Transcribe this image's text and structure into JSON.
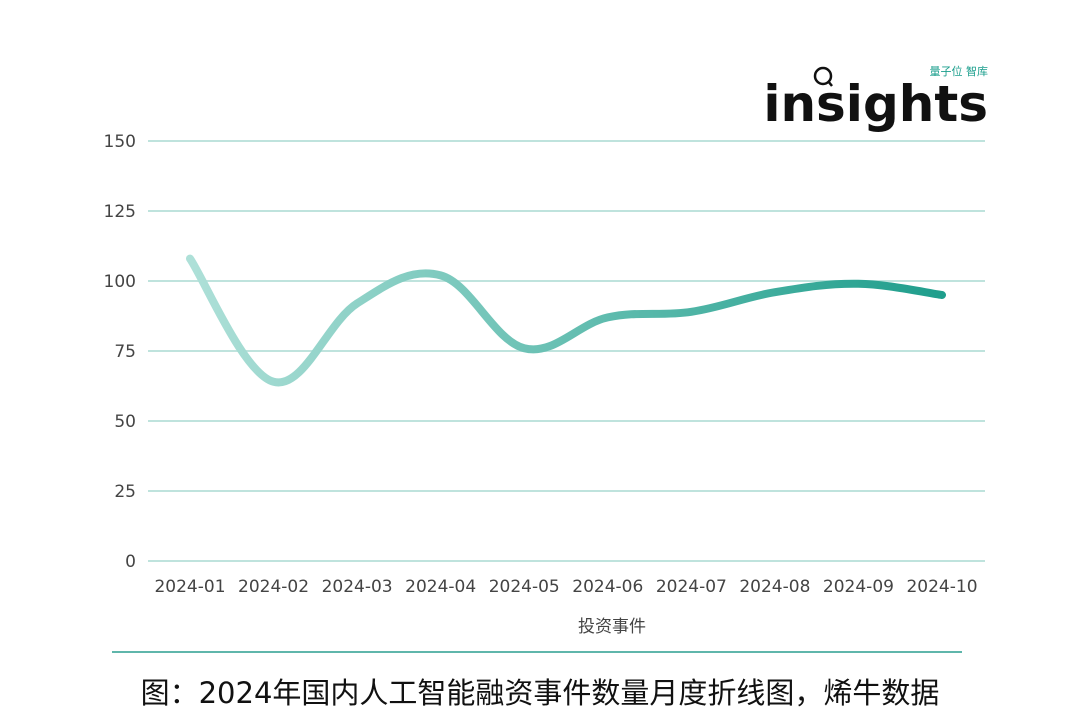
{
  "brand": {
    "small_text": "量子位 智库",
    "logo_text": "insights"
  },
  "caption": "图：2024年国内人工智能融资事件数量月度折线图，烯牛数据",
  "colors": {
    "line_start": "#aee0d8",
    "line_end": "#1f9e8c",
    "grid": "#bfe3dd",
    "axis": "#2a9d8f"
  },
  "chart_data": {
    "type": "line",
    "categories": [
      "2024-01",
      "2024-02",
      "2024-03",
      "2024-04",
      "2024-05",
      "2024-06",
      "2024-07",
      "2024-08",
      "2024-09",
      "2024-10"
    ],
    "series": [
      {
        "name": "投资事件",
        "values": [
          108,
          64,
          92,
          102,
          76,
          87,
          89,
          96,
          99,
          95
        ]
      }
    ],
    "title": "",
    "xlabel": "",
    "ylabel": "",
    "ylim": [
      0,
      150
    ],
    "yticks": [
      0,
      25,
      50,
      75,
      100,
      125,
      150
    ],
    "grid": true,
    "legend": "bottom-center"
  }
}
